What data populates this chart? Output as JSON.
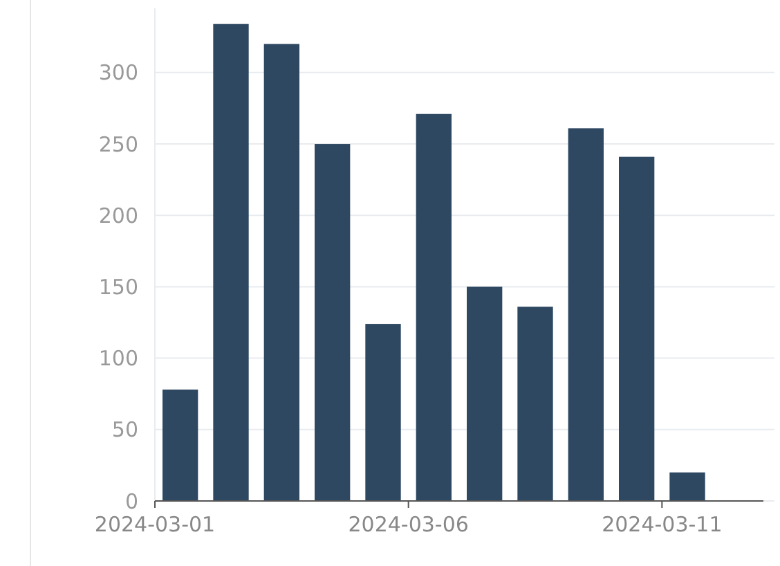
{
  "chart_data": {
    "type": "bar",
    "x": [
      "2024-03-01T12:00",
      "2024-03-02T12:00",
      "2024-03-03T12:00",
      "2024-03-04T12:00",
      "2024-03-05T12:00",
      "2024-03-06T12:00",
      "2024-03-07T12:00",
      "2024-03-08T12:00",
      "2024-03-09T12:00",
      "2024-03-10T12:00",
      "2024-03-11T12:00"
    ],
    "values": [
      78,
      334,
      320,
      250,
      124,
      271,
      150,
      136,
      261,
      241,
      20
    ],
    "color": "#2e4862",
    "xlim": [
      "2024-03-01",
      "2024-03-13"
    ],
    "xticks": [
      {
        "value": "2024-03-01",
        "label": "2024-03-01"
      },
      {
        "value": "2024-03-06",
        "label": "2024-03-06"
      },
      {
        "value": "2024-03-11",
        "label": "2024-03-11"
      }
    ],
    "ylim": [
      0,
      345
    ],
    "yticks": [
      0,
      50,
      100,
      150,
      200,
      250,
      300
    ],
    "grid": "y"
  }
}
